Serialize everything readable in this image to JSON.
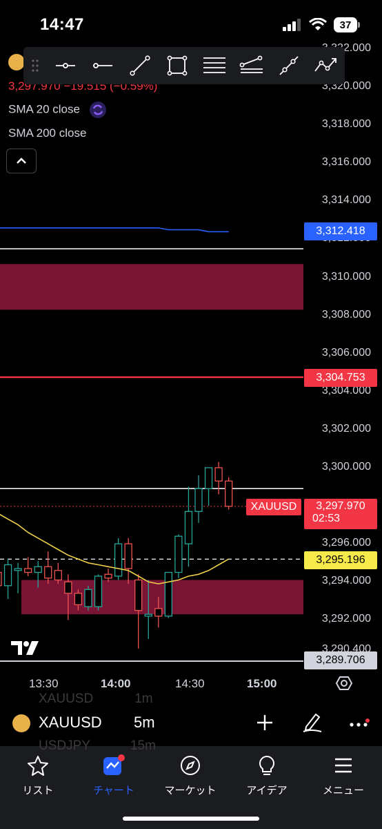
{
  "status_bar": {
    "time": "14:47",
    "battery": "37"
  },
  "legend": {
    "price_line": "3,297.970 −19.515 (−0.59%)",
    "sma20": "SMA 20 close",
    "sma200": "SMA 200 close"
  },
  "toolbar": {
    "tools": [
      "horizontal-ray-icon",
      "horizontal-line-icon",
      "trend-line-icon",
      "rectangle-icon",
      "fib-retracement-icon",
      "parallel-channel-icon",
      "info-line-icon",
      "path-icon"
    ]
  },
  "chart_data": {
    "type": "candlestick",
    "symbol": "XAUUSD",
    "interval": "5m",
    "y_ticks": [
      "3,322.000",
      "3,320.000",
      "3,318.000",
      "3,316.000",
      "3,314.000",
      "3,312.000",
      "3,310.000",
      "3,308.000",
      "3,306.000",
      "3,304.000",
      "3,302.000",
      "3,300.000",
      "3,298.000",
      "3,296.000",
      "3,294.000",
      "3,292.000",
      "3,290.400"
    ],
    "y_range": [
      3289.4,
      3322.5
    ],
    "x_ticks": [
      "13:30",
      "14:00",
      "14:30",
      "15:00"
    ],
    "price_badges": {
      "sma200": "3,312.418",
      "red_line": "3,304.753",
      "symbol_label": "XAUUSD",
      "last_price": "3,297.970",
      "countdown": "02:53",
      "sma20": "3,295.196",
      "low_line": "3,289.706"
    },
    "levels": {
      "white_line_top": 3311.5,
      "white_line_mid": 3298.9,
      "red_line": 3304.753,
      "sma20_dashed": 3295.196
    },
    "zones": [
      {
        "from": 3308.3,
        "to": 3310.7
      },
      {
        "from": 3292.3,
        "to": 3294.1
      }
    ],
    "candles": [
      {
        "o": 3294.5,
        "h": 3295.3,
        "l": 3292.8,
        "c": 3293.8
      },
      {
        "o": 3293.8,
        "h": 3295.2,
        "l": 3293.1,
        "c": 3294.9
      },
      {
        "o": 3294.6,
        "h": 3295.0,
        "l": 3293.4,
        "c": 3294.7
      },
      {
        "o": 3294.7,
        "h": 3295.3,
        "l": 3294.3,
        "c": 3294.5
      },
      {
        "o": 3294.5,
        "h": 3295.1,
        "l": 3293.7,
        "c": 3294.8
      },
      {
        "o": 3294.8,
        "h": 3295.6,
        "l": 3293.9,
        "c": 3294.2
      },
      {
        "o": 3294.6,
        "h": 3295.0,
        "l": 3293.9,
        "c": 3294.1
      },
      {
        "o": 3294.0,
        "h": 3294.4,
        "l": 3292.0,
        "c": 3293.4
      },
      {
        "o": 3293.4,
        "h": 3293.6,
        "l": 3292.5,
        "c": 3292.8
      },
      {
        "o": 3292.7,
        "h": 3293.8,
        "l": 3292.5,
        "c": 3293.6
      },
      {
        "o": 3292.7,
        "h": 3294.4,
        "l": 3292.5,
        "c": 3294.3
      },
      {
        "o": 3294.4,
        "h": 3294.7,
        "l": 3294.0,
        "c": 3294.2
      },
      {
        "o": 3294.3,
        "h": 3296.3,
        "l": 3294.1,
        "c": 3296.0
      },
      {
        "o": 3296.0,
        "h": 3296.3,
        "l": 3293.9,
        "c": 3294.7
      },
      {
        "o": 3294.1,
        "h": 3294.4,
        "l": 3290.5,
        "c": 3292.5
      },
      {
        "o": 3292.2,
        "h": 3294.1,
        "l": 3291.0,
        "c": 3292.3
      },
      {
        "o": 3292.6,
        "h": 3293.2,
        "l": 3291.6,
        "c": 3292.2
      },
      {
        "o": 3292.2,
        "h": 3294.5,
        "l": 3292.1,
        "c": 3294.5
      },
      {
        "o": 3294.5,
        "h": 3296.5,
        "l": 3294.2,
        "c": 3296.4
      },
      {
        "o": 3296.0,
        "h": 3299.0,
        "l": 3294.8,
        "c": 3297.7
      },
      {
        "o": 3297.7,
        "h": 3299.6,
        "l": 3297.1,
        "c": 3298.9
      },
      {
        "o": 3298.9,
        "h": 3300.0,
        "l": 3298.0,
        "c": 3300.0
      },
      {
        "o": 3300.0,
        "h": 3300.3,
        "l": 3298.6,
        "c": 3299.3
      },
      {
        "o": 3299.3,
        "h": 3299.5,
        "l": 3297.8,
        "c": 3297.97
      }
    ],
    "sma20_line": [
      3297.6,
      3297.3,
      3297.0,
      3296.6,
      3296.3,
      3296.0,
      3295.7,
      3295.4,
      3295.2,
      3295.0,
      3294.9,
      3294.8,
      3294.7,
      3294.6,
      3294.3,
      3294.0,
      3293.9,
      3294.0,
      3294.1,
      3294.3,
      3294.4,
      3294.6,
      3294.9,
      3295.2
    ],
    "sma200_line": [
      3312.6,
      3312.6,
      3312.6,
      3312.6,
      3312.6,
      3312.6,
      3312.6,
      3312.6,
      3312.6,
      3312.6,
      3312.6,
      3312.6,
      3312.6,
      3312.6,
      3312.6,
      3312.6,
      3312.6,
      3312.5,
      3312.5,
      3312.5,
      3312.5,
      3312.4,
      3312.4,
      3312.4
    ]
  },
  "symbol_bar": {
    "symbol": "XAUUSD",
    "interval": "5m",
    "ghost_symbol_prev": "XAUUSD",
    "ghost_interval_prev": "1m",
    "ghost_symbol_next": "USDJPY",
    "ghost_interval_next": "15m"
  },
  "nav": {
    "items": [
      {
        "label": "リスト",
        "icon": "star-icon"
      },
      {
        "label": "チャート",
        "icon": "chart-icon"
      },
      {
        "label": "マーケット",
        "icon": "compass-icon"
      },
      {
        "label": "アイデア",
        "icon": "lightbulb-icon"
      },
      {
        "label": "メニュー",
        "icon": "menu-icon"
      }
    ]
  },
  "colors": {
    "up": "#26a69a",
    "down": "#ef5350",
    "zone": "#7a1434",
    "sma20": "#f0d04a",
    "sma200": "#2962ff",
    "accent": "#2962ff"
  }
}
